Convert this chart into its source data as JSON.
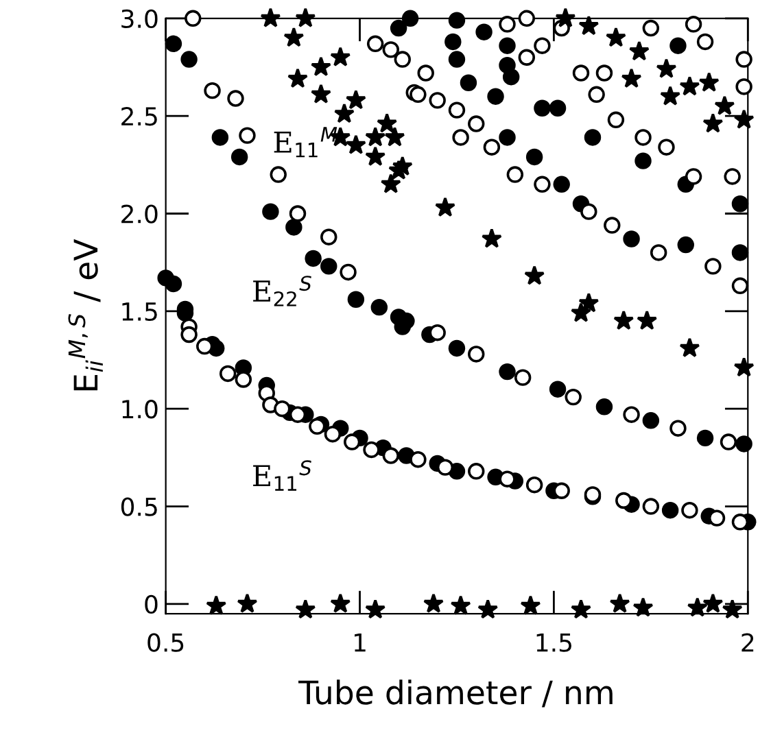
{
  "chart_data": {
    "type": "scatter",
    "xlabel": "Tube diameter / nm",
    "ylabel": "E$_{ii}$$^{M,S}$ / eV",
    "xlim": [
      0.5,
      2.0
    ],
    "ylim": [
      -0.05,
      3.0
    ],
    "xticks": [
      0.5,
      1,
      1.5,
      2
    ],
    "yticks": [
      0,
      0.5,
      {
        "value": 1,
        "label": "1.0"
      },
      1.5,
      {
        "value": 2,
        "label": "2.0"
      },
      2.5,
      {
        "value": 3,
        "label": "3.0"
      }
    ],
    "annotations": [
      "E$_{11}$$^{M}$",
      "E$_{22}$$^{S}$",
      "E$_{11}$$^{S}$"
    ],
    "series": [
      {
        "color": "#000000",
        "marker": "circle",
        "x": [
          0.5,
          0.55,
          0.62,
          0.63,
          0.7,
          0.76,
          0.82,
          0.86,
          0.9,
          0.95,
          1.0,
          1.06,
          1.12,
          1.2,
          1.25,
          1.35,
          1.4,
          1.5,
          1.6,
          1.7,
          1.8,
          1.9,
          2.0,
          0.64,
          0.69,
          0.77,
          0.83,
          0.88,
          0.92,
          0.99,
          1.05,
          1.1,
          1.12,
          1.11,
          1.18,
          1.25,
          1.38,
          1.51,
          1.63,
          1.75,
          1.89,
          1.99,
          1.38,
          1.45,
          1.52,
          1.57,
          1.7,
          1.84,
          1.98,
          1.1,
          1.25,
          1.28,
          1.35,
          1.38,
          1.39,
          1.47,
          1.51,
          1.6,
          1.73,
          1.84,
          1.98,
          1.13,
          1.25,
          1.32,
          1.38,
          1.24,
          1.82,
          0.52,
          0.56,
          0.52,
          0.55
        ],
        "values": [
          1.67,
          1.51,
          1.33,
          1.31,
          1.21,
          1.12,
          0.98,
          0.97,
          0.92,
          0.9,
          0.85,
          0.8,
          0.76,
          0.72,
          0.68,
          0.65,
          0.63,
          0.58,
          0.55,
          0.51,
          0.48,
          0.45,
          0.42,
          2.39,
          2.29,
          2.01,
          1.93,
          1.77,
          1.73,
          1.56,
          1.52,
          1.47,
          1.45,
          1.42,
          1.38,
          1.31,
          1.19,
          1.1,
          1.01,
          0.94,
          0.85,
          0.82,
          2.39,
          2.29,
          2.15,
          2.05,
          1.87,
          1.84,
          1.8,
          2.95,
          2.79,
          2.67,
          2.6,
          2.76,
          2.7,
          2.54,
          2.54,
          2.39,
          2.27,
          2.15,
          2.05,
          3.0,
          2.99,
          2.93,
          2.86,
          2.88,
          2.86,
          2.87,
          2.79,
          1.64,
          1.49
        ]
      },
      {
        "color": "#ffffff",
        "marker": "circle",
        "x": [
          0.56,
          0.56,
          0.6,
          0.66,
          0.7,
          0.76,
          0.77,
          0.8,
          0.84,
          0.89,
          0.93,
          0.98,
          1.03,
          1.08,
          1.15,
          1.22,
          1.3,
          1.38,
          1.45,
          1.52,
          1.6,
          1.68,
          1.75,
          1.85,
          1.92,
          1.98,
          0.71,
          0.79,
          0.84,
          0.92,
          0.97,
          1.2,
          1.3,
          1.42,
          1.55,
          1.7,
          1.82,
          1.95,
          1.26,
          1.3,
          1.34,
          1.4,
          1.47,
          1.59,
          1.65,
          1.77,
          1.91,
          1.98,
          1.04,
          1.08,
          1.11,
          1.14,
          1.17,
          1.15,
          1.2,
          1.25,
          1.61,
          1.66,
          1.73,
          1.79,
          1.86,
          1.96,
          1.38,
          1.43,
          1.43,
          1.47,
          1.52,
          1.57,
          1.63,
          1.75,
          1.86,
          1.89,
          1.99,
          1.99,
          0.57,
          0.62,
          0.68
        ],
        "values": [
          1.42,
          1.38,
          1.32,
          1.18,
          1.15,
          1.08,
          1.02,
          1.0,
          0.97,
          0.91,
          0.87,
          0.83,
          0.79,
          0.76,
          0.74,
          0.7,
          0.68,
          0.64,
          0.61,
          0.58,
          0.56,
          0.53,
          0.5,
          0.48,
          0.44,
          0.42,
          2.4,
          2.2,
          2.0,
          1.88,
          1.7,
          1.39,
          1.28,
          1.16,
          1.06,
          0.97,
          0.9,
          0.83,
          2.39,
          2.46,
          2.34,
          2.2,
          2.15,
          2.01,
          1.94,
          1.8,
          1.73,
          1.63,
          2.87,
          2.84,
          2.79,
          2.62,
          2.72,
          2.61,
          2.58,
          2.53,
          2.61,
          2.48,
          2.39,
          2.34,
          2.19,
          2.19,
          2.97,
          3.0,
          2.8,
          2.86,
          2.95,
          2.72,
          2.72,
          2.95,
          2.97,
          2.88,
          2.79,
          2.65,
          3.0,
          2.63,
          2.59
        ]
      },
      {
        "color": "#000000",
        "marker": "star",
        "x": [
          0.83,
          0.84,
          0.9,
          0.95,
          0.9,
          0.96,
          0.99,
          0.95,
          0.99,
          1.04,
          1.07,
          1.09,
          1.04,
          1.1,
          1.08,
          0.77,
          0.86,
          1.11,
          1.22,
          1.34,
          1.45,
          1.59,
          1.74,
          1.57,
          1.68,
          1.85,
          1.99,
          1.59,
          1.66,
          1.72,
          1.79,
          1.9,
          1.94,
          1.85,
          1.99,
          1.53,
          1.7,
          1.8,
          1.91,
          0.63,
          0.71,
          0.86,
          0.95,
          1.04,
          1.19,
          1.26,
          1.33,
          1.44,
          1.57,
          1.67,
          1.73,
          1.87,
          1.91,
          1.96
        ],
        "values": [
          2.9,
          2.69,
          2.75,
          2.8,
          2.61,
          2.51,
          2.58,
          2.39,
          2.35,
          2.39,
          2.46,
          2.39,
          2.29,
          2.22,
          2.15,
          3.0,
          3.0,
          2.24,
          2.03,
          1.87,
          1.68,
          1.54,
          1.45,
          1.49,
          1.45,
          1.31,
          1.21,
          2.96,
          2.9,
          2.83,
          2.74,
          2.67,
          2.55,
          2.65,
          2.48,
          3.0,
          2.69,
          2.6,
          2.46,
          -0.01,
          0.0,
          -0.03,
          0.0,
          -0.03,
          0.0,
          -0.01,
          -0.03,
          -0.01,
          -0.03,
          0.0,
          -0.02,
          -0.02,
          0.0,
          -0.03
        ]
      }
    ]
  }
}
